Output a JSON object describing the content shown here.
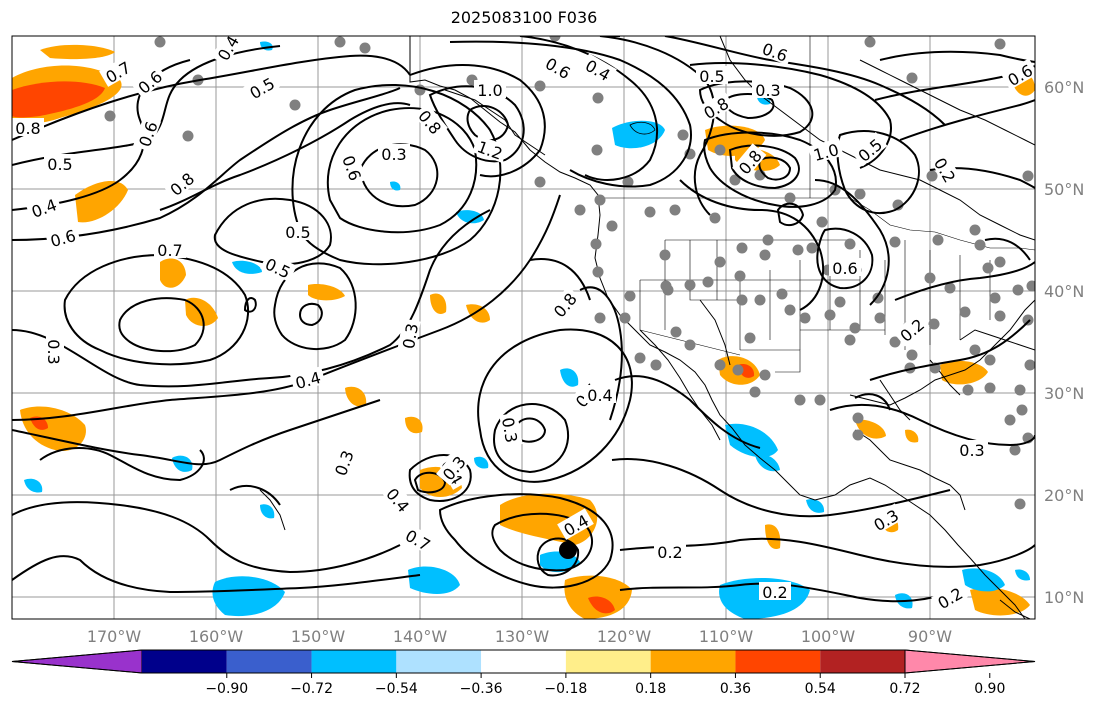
{
  "title": "2025083100 F036",
  "map": {
    "projection": "PlateCarree",
    "lon_range": [
      -180,
      -80
    ],
    "lat_range": [
      7,
      64
    ],
    "grid": true,
    "land_outline_color": "#000000",
    "station_color": "#808080"
  },
  "lat_labels": [
    "60°N",
    "50°N",
    "40°N",
    "30°N",
    "20°N",
    "10°N"
  ],
  "lon_labels": [
    "170°W",
    "160°W",
    "150°W",
    "140°W",
    "130°W",
    "120°W",
    "110°W",
    "100°W",
    "90°W"
  ],
  "contour_labels": [
    "0.7",
    "0.6",
    "0.8",
    "0.5",
    "0.5",
    "0.4",
    "0.6",
    "0.8",
    "0.7",
    "0.5",
    "0.4",
    "0.3",
    "0.5",
    "0.6",
    "0.3",
    "0.6",
    "0.3",
    "0.4",
    "0.4",
    "1.0",
    "1.2",
    "0.8",
    "0.6",
    "0.4",
    "0.8",
    "0.5",
    "0.3",
    "0.4",
    "0.7",
    "0.8",
    "0.6",
    "0.5",
    "1.0",
    "0.6",
    "0.2",
    "0.8",
    "0.5",
    "0.6",
    "0.3",
    "0.3",
    "0.4",
    "0.3",
    "0.3",
    "0.4",
    "0.2",
    "0.2",
    "0.3",
    "0.2",
    "0.2"
  ],
  "colorbar": {
    "ticks": [
      "−0.90",
      "−0.72",
      "−0.54",
      "−0.36",
      "−0.18",
      "0.18",
      "0.36",
      "0.54",
      "0.72",
      "0.90"
    ],
    "colors": [
      "#9932cc",
      "#00008b",
      "#3a5fcd",
      "#00bfff",
      "#aee1ff",
      "#ffffff",
      "#ffee8a",
      "#ffa500",
      "#ff4500",
      "#b22222",
      "#ff88aa"
    ]
  }
}
